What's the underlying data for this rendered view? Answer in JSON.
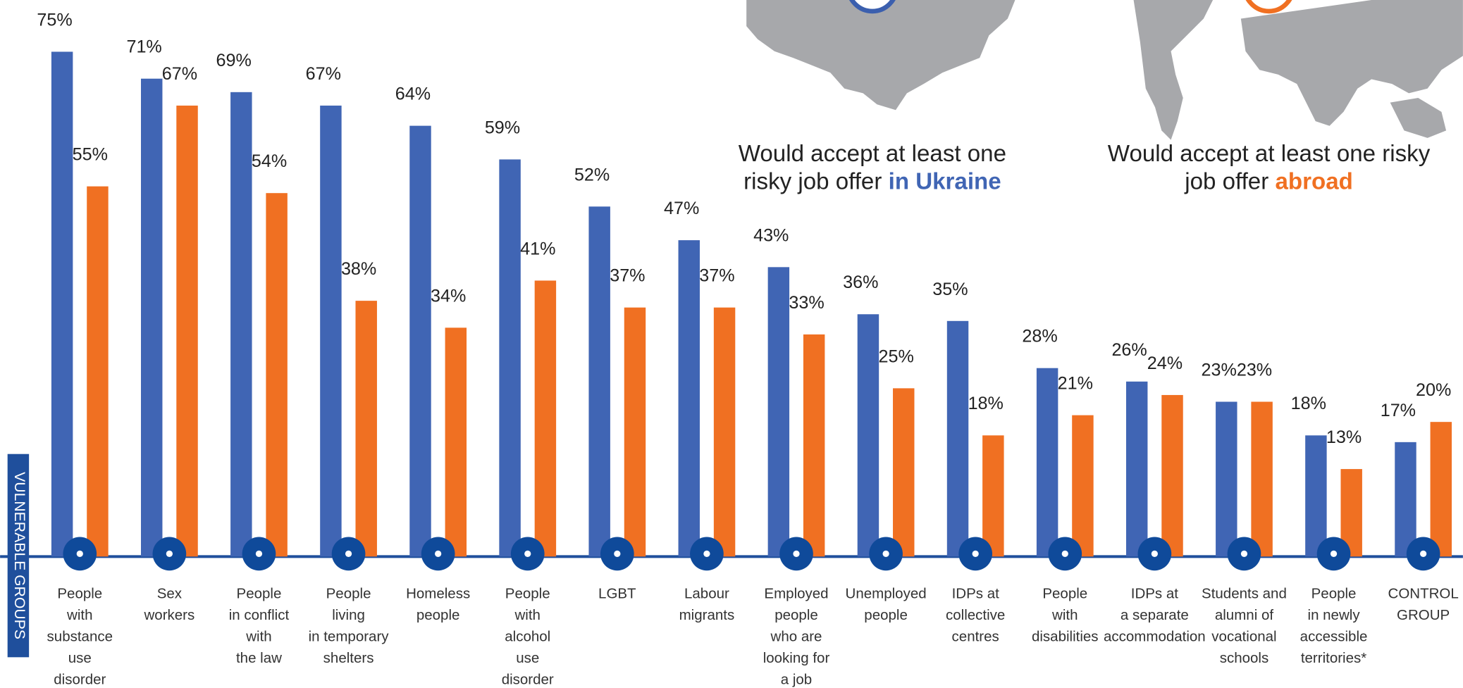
{
  "chart_data": {
    "type": "bar",
    "axis_label": "VULNERABLE GROUPS",
    "categories": [
      "People\nwith\nsubstance\nuse\ndisorder",
      "Sex\nworkers",
      "People\nin conflict\nwith\nthe law",
      "People\nliving\nin temporary\nshelters",
      "Homeless\npeople",
      "People\nwith\nalcohol\nuse\ndisorder",
      "LGBT",
      "Labour\nmigrants",
      "Employed\npeople\nwho are\nlooking for\na job",
      "Unemployed\npeople",
      "IDPs at\ncollective\ncentres",
      "People\nwith\ndisabilities",
      "IDPs at\na separate\naccommodation",
      "Students and\nalumni of\nvocational\nschools",
      "People\nin newly\naccessible\nterritories*",
      "CONTROL\nGROUP"
    ],
    "highlight_category": 15,
    "highlight_color": "#2b5ea8",
    "series": [
      {
        "name": "in Ukraine",
        "legend_text": "Would accept at least one\nrisky job offer",
        "color": "#4065b4",
        "values": [
          75,
          71,
          69,
          67,
          64,
          59,
          52,
          47,
          43,
          36,
          35,
          28,
          26,
          23,
          18,
          17
        ],
        "value_labels": [
          "75%",
          "71%",
          "69%",
          "67%",
          "64%",
          "59%",
          "52%",
          "47%",
          "43%",
          "36%",
          "35%",
          "28%",
          "26%",
          "23%",
          "18%",
          "17%"
        ]
      },
      {
        "name": "abroad",
        "legend_text": "Would accept at least one risky\njob offer",
        "color": "#f07022",
        "values": [
          55,
          67,
          54,
          38,
          34,
          41,
          37,
          37,
          33,
          25,
          18,
          21,
          24,
          23,
          13,
          20
        ],
        "value_labels": [
          "55%",
          "67%",
          "54%",
          "38%",
          "34%",
          "41%",
          "37%",
          "37%",
          "33%",
          "25%",
          "18%",
          "21%",
          "24%",
          "23%",
          "13%",
          "20%"
        ]
      }
    ]
  }
}
